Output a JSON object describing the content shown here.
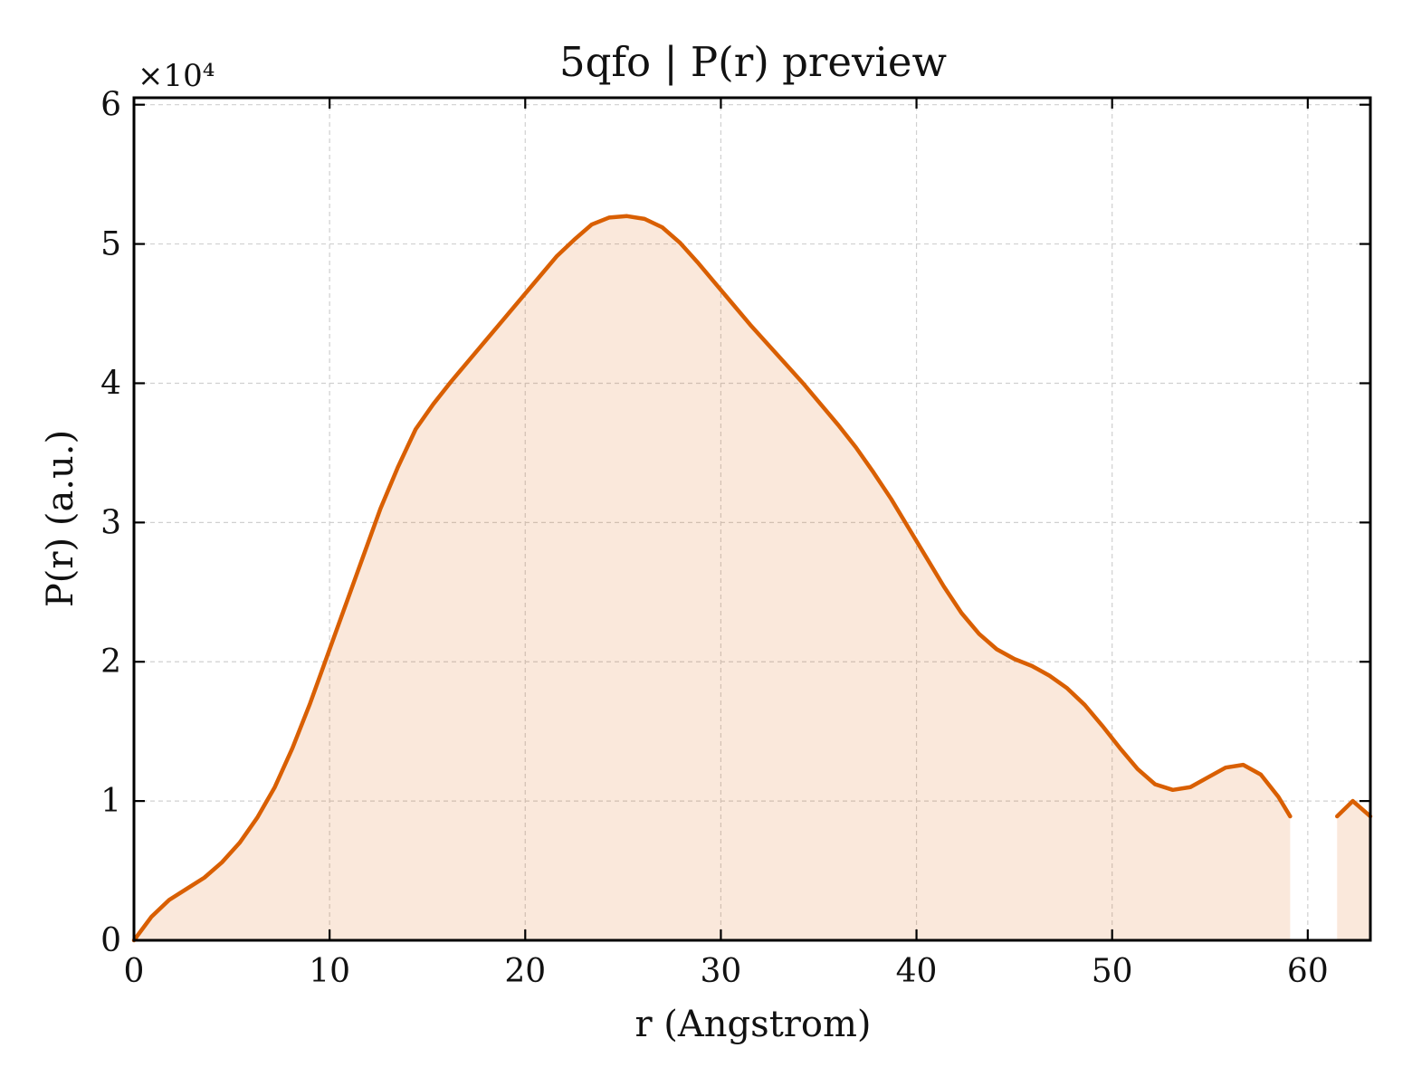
{
  "chart_data": {
    "type": "area",
    "title": "5qfo | P(r) preview",
    "xlabel": "r (Angstrom)",
    "ylabel": "P(r) (a.u.)",
    "y_offset_label": "×10⁴",
    "y_scale_factor": 10000,
    "xlim": [
      0,
      63.2
    ],
    "ylim": [
      0,
      60500
    ],
    "x_ticks": [
      0,
      10,
      20,
      30,
      40,
      50,
      60
    ],
    "y_ticks": [
      0,
      10000,
      20000,
      30000,
      40000,
      50000,
      60000
    ],
    "x_tick_labels": [
      "0",
      "10",
      "20",
      "30",
      "40",
      "50",
      "60"
    ],
    "y_tick_labels": [
      "0",
      "1",
      "2",
      "3",
      "4",
      "5",
      "6"
    ],
    "grid": true,
    "colors": {
      "line": "#d95f02",
      "fill": "#d95f02",
      "fill_opacity": 0.14
    },
    "series": [
      {
        "segments": [
          [
            [
              0,
              0
            ],
            [
              0.9,
              1700
            ],
            [
              1.8,
              2900
            ],
            [
              2.7,
              3700
            ],
            [
              3.6,
              4500
            ],
            [
              4.5,
              5600
            ],
            [
              5.4,
              7000
            ],
            [
              6.3,
              8800
            ],
            [
              7.2,
              11000
            ],
            [
              8.1,
              13800
            ],
            [
              9.0,
              17000
            ],
            [
              9.9,
              20500
            ],
            [
              10.8,
              24000
            ],
            [
              11.7,
              27500
            ],
            [
              12.6,
              31000
            ],
            [
              13.5,
              34000
            ],
            [
              14.4,
              36700
            ],
            [
              15.3,
              38500
            ],
            [
              16.2,
              40100
            ],
            [
              17.1,
              41600
            ],
            [
              18.0,
              43100
            ],
            [
              18.9,
              44600
            ],
            [
              19.8,
              46100
            ],
            [
              20.7,
              47600
            ],
            [
              21.6,
              49100
            ],
            [
              22.5,
              50300
            ],
            [
              23.4,
              51400
            ],
            [
              24.3,
              51900
            ],
            [
              25.2,
              52000
            ],
            [
              26.1,
              51800
            ],
            [
              27.0,
              51200
            ],
            [
              27.9,
              50100
            ],
            [
              28.8,
              48700
            ],
            [
              29.7,
              47200
            ],
            [
              30.6,
              45700
            ],
            [
              31.5,
              44200
            ],
            [
              32.4,
              42800
            ],
            [
              33.3,
              41400
            ],
            [
              34.2,
              40000
            ],
            [
              35.1,
              38500
            ],
            [
              36.0,
              37000
            ],
            [
              36.9,
              35400
            ],
            [
              37.8,
              33600
            ],
            [
              38.7,
              31700
            ],
            [
              39.6,
              29600
            ],
            [
              40.5,
              27500
            ],
            [
              41.4,
              25400
            ],
            [
              42.3,
              23500
            ],
            [
              43.2,
              22000
            ],
            [
              44.1,
              20900
            ],
            [
              45.0,
              20200
            ],
            [
              45.9,
              19700
            ],
            [
              46.8,
              19000
            ],
            [
              47.7,
              18100
            ],
            [
              48.6,
              16900
            ],
            [
              49.5,
              15400
            ],
            [
              50.4,
              13800
            ],
            [
              51.3,
              12300
            ],
            [
              52.2,
              11200
            ],
            [
              53.1,
              10800
            ],
            [
              54.0,
              11000
            ],
            [
              54.9,
              11700
            ],
            [
              55.8,
              12400
            ],
            [
              56.7,
              12600
            ],
            [
              57.6,
              11900
            ],
            [
              58.5,
              10300
            ],
            [
              59.1,
              8900
            ]
          ],
          [
            [
              61.5,
              8900
            ],
            [
              62.3,
              10000
            ],
            [
              63.2,
              8900
            ]
          ]
        ]
      }
    ]
  }
}
